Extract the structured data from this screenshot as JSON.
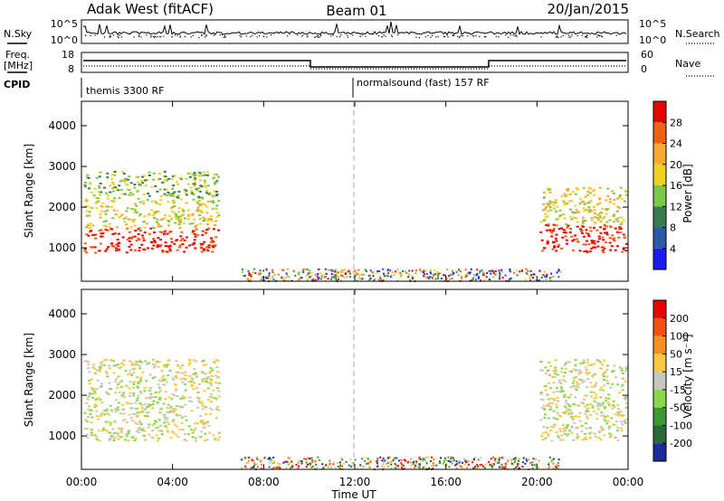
{
  "header": {
    "station": "Adak West (fitACF)",
    "beam": "Beam 01",
    "date": "20/Jan/2015"
  },
  "noise_panel": {
    "left_label": "N.Sky",
    "left_ticks": [
      "10^5",
      "10^0"
    ],
    "right_ticks": [
      "10^5",
      "10^0"
    ],
    "right_label": "N.Search"
  },
  "freq_panel": {
    "left_label_1": "Freq.",
    "left_label_2": "[MHz]",
    "left_ticks": [
      "18",
      "8"
    ],
    "right_ticks": [
      "60",
      "0"
    ],
    "right_label": "Nave"
  },
  "cpid": {
    "label": "CPID",
    "segments": [
      "themis 3300 RF",
      "normalsound (fast) 157 RF"
    ]
  },
  "x_axis": {
    "title": "Time UT",
    "ticks": [
      "00:00",
      "04:00",
      "08:00",
      "12:00",
      "16:00",
      "20:00",
      "00:00"
    ]
  },
  "range_axis": {
    "label": "Slant Range [km]",
    "ticks": [
      "1000",
      "2000",
      "3000",
      "4000"
    ]
  },
  "power_scale": {
    "label": "Power [dB]",
    "ticks": [
      "4",
      "8",
      "12",
      "16",
      "20",
      "24",
      "28"
    ],
    "colors": [
      "#1c1cf0",
      "#2a5aa8",
      "#3a7a50",
      "#7ac848",
      "#f0d020",
      "#f8a830",
      "#f06010",
      "#e80000"
    ]
  },
  "velocity_scale": {
    "label": "Velocity [m s⁻¹]",
    "ticks": [
      "200",
      "100",
      "50",
      "15",
      "-15",
      "-50",
      "-100",
      "-200"
    ],
    "colors": [
      "#1a2a9a",
      "#2a6a3a",
      "#3a9a30",
      "#88d848",
      "#c8c8c0",
      "#f8c840",
      "#f89020",
      "#f85010",
      "#e80000"
    ]
  },
  "chart_data": {
    "type": "heatmap",
    "x_range_hours": [
      0,
      24
    ],
    "y_range_km": [
      180,
      4600
    ],
    "regions": [
      {
        "panel": "power",
        "t0": 0.1,
        "t1": 6.0,
        "r0": 900,
        "r1": 1500,
        "level": 7
      },
      {
        "panel": "power",
        "t0": 0.1,
        "t1": 6.0,
        "r0": 1500,
        "r1": 2200,
        "level": 4
      },
      {
        "panel": "power",
        "t0": 0.1,
        "t1": 6.0,
        "r0": 2200,
        "r1": 2900,
        "level": 3
      },
      {
        "panel": "power",
        "t0": 20.1,
        "t1": 23.9,
        "r0": 900,
        "r1": 1600,
        "level": 7
      },
      {
        "panel": "power",
        "t0": 20.1,
        "t1": 23.9,
        "r0": 1600,
        "r1": 2500,
        "level": 4
      },
      {
        "panel": "velocity",
        "t0": 0.1,
        "t1": 6.0,
        "r0": 900,
        "r1": 2900,
        "level": 4
      },
      {
        "panel": "velocity",
        "t0": 20.1,
        "t1": 23.9,
        "r0": 900,
        "r1": 2900,
        "level": 4
      }
    ]
  }
}
